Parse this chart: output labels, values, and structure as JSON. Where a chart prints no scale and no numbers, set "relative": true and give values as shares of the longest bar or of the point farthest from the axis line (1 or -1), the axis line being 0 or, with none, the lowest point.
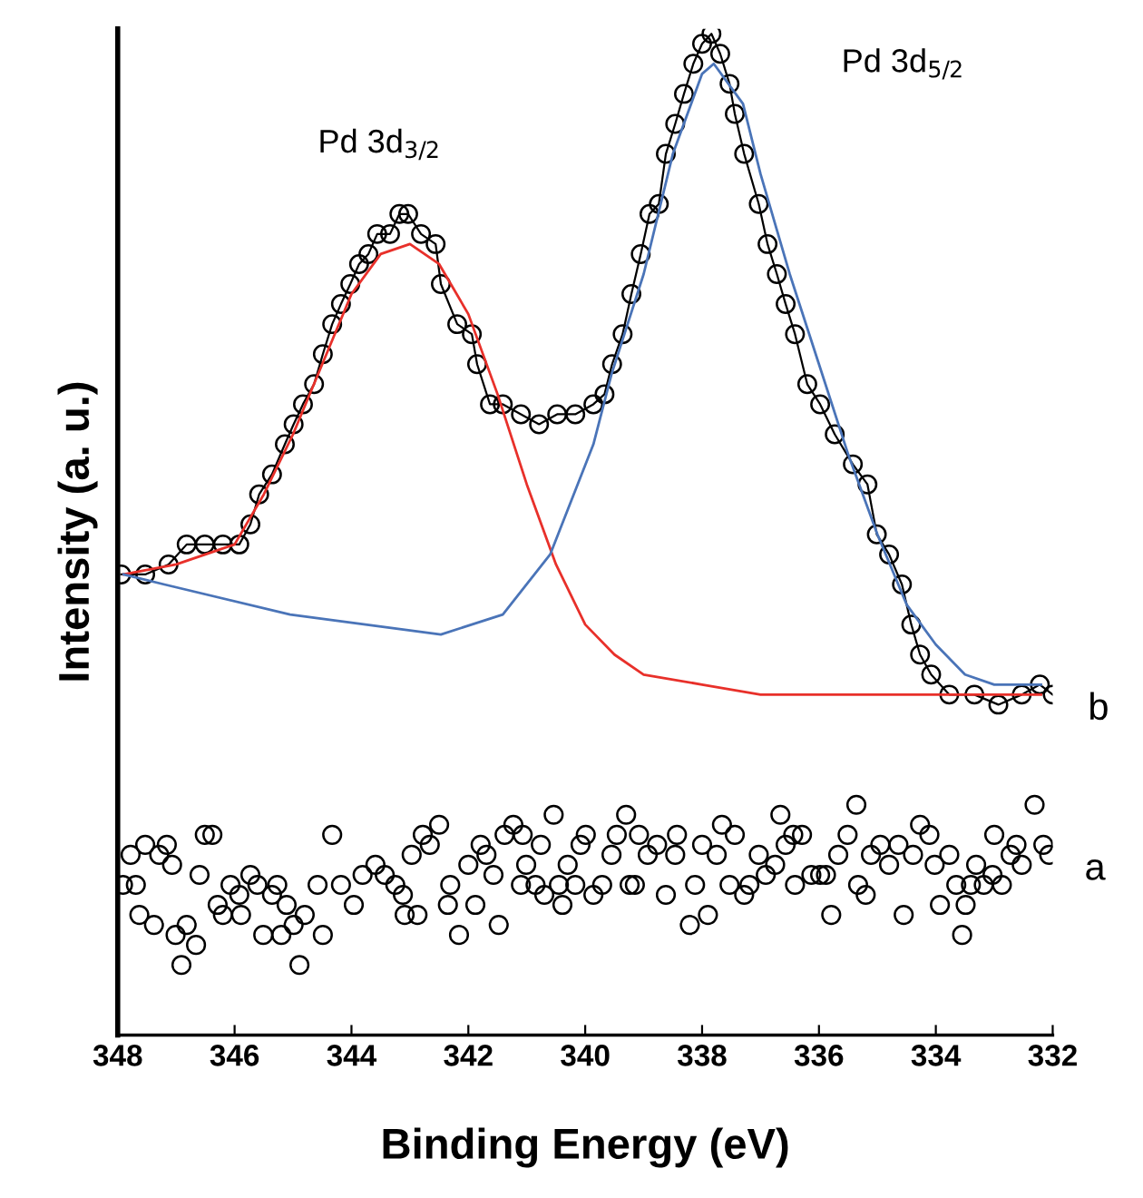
{
  "chart_data": {
    "type": "line",
    "xlabel": "Binding Energy (eV)",
    "ylabel": "Intensity (a. u.)",
    "relative": true,
    "tick_labels": "x",
    "grid": false,
    "legend": false,
    "xlim": [
      348,
      332
    ],
    "xticks": [
      348,
      346,
      344,
      342,
      340,
      338,
      336,
      334,
      332
    ],
    "annotations": [
      "Pd 3d$_{3/2}$",
      "Pd 3d$_{5/2}$"
    ],
    "series": [
      {
        "name": "b",
        "marker": "circle",
        "color": "#000000",
        "x": [
          347.94,
          347.53,
          347.13,
          346.82,
          346.51,
          346.2,
          345.92,
          345.73,
          345.58,
          345.36,
          345.14,
          344.99,
          344.83,
          344.64,
          344.49,
          344.33,
          344.18,
          344.02,
          343.87,
          343.71,
          343.56,
          343.34,
          343.18,
          343.03,
          342.81,
          342.56,
          342.47,
          342.19,
          341.94,
          341.85,
          341.63,
          341.41,
          341.1,
          340.79,
          340.48,
          340.17,
          339.86,
          339.67,
          339.54,
          339.36,
          339.21,
          339.05,
          338.9,
          338.74,
          338.62,
          338.46,
          338.31,
          338.15,
          338.0,
          337.84,
          337.69,
          337.53,
          337.44,
          337.28,
          337.03,
          336.88,
          336.72,
          336.57,
          336.41,
          336.2,
          335.98,
          335.73,
          335.42,
          335.17,
          335.01,
          334.8,
          334.58,
          334.42,
          334.27,
          334.08,
          333.77,
          333.34,
          332.93,
          332.53,
          332.22,
          332.0
        ],
        "values": [
          0.46,
          0.46,
          0.47,
          0.49,
          0.49,
          0.49,
          0.49,
          0.51,
          0.54,
          0.56,
          0.59,
          0.61,
          0.63,
          0.65,
          0.68,
          0.71,
          0.73,
          0.75,
          0.77,
          0.78,
          0.8,
          0.8,
          0.82,
          0.82,
          0.8,
          0.79,
          0.75,
          0.71,
          0.7,
          0.67,
          0.63,
          0.63,
          0.62,
          0.61,
          0.62,
          0.62,
          0.63,
          0.64,
          0.67,
          0.7,
          0.74,
          0.78,
          0.82,
          0.83,
          0.88,
          0.91,
          0.94,
          0.97,
          0.99,
          1.0,
          0.98,
          0.95,
          0.92,
          0.88,
          0.83,
          0.79,
          0.76,
          0.73,
          0.7,
          0.65,
          0.63,
          0.6,
          0.57,
          0.55,
          0.5,
          0.48,
          0.45,
          0.41,
          0.38,
          0.36,
          0.34,
          0.34,
          0.33,
          0.34,
          0.35,
          0.34
        ]
      },
      {
        "type": "line",
        "color": "#e8302a",
        "x": [
          347.9,
          347.0,
          346.5,
          346.0,
          345.5,
          345.0,
          344.5,
          344.0,
          343.5,
          343.0,
          342.5,
          342.0,
          341.5,
          341.0,
          340.5,
          340.0,
          339.5,
          339.0,
          338.0,
          337.0,
          336.0,
          334.0,
          332.2
        ],
        "values": [
          0.46,
          0.47,
          0.48,
          0.49,
          0.54,
          0.6,
          0.67,
          0.74,
          0.78,
          0.79,
          0.77,
          0.72,
          0.64,
          0.55,
          0.47,
          0.41,
          0.38,
          0.36,
          0.35,
          0.34,
          0.34,
          0.34,
          0.34
        ]
      },
      {
        "type": "line",
        "color": "#4a74b8",
        "x": [
          347.9,
          347.2,
          345.05,
          342.47,
          341.41,
          340.6,
          339.86,
          339.55,
          339.0,
          338.5,
          338.0,
          337.8,
          337.3,
          337.0,
          336.5,
          336.0,
          335.5,
          335.0,
          334.5,
          334.0,
          333.5,
          333.0,
          332.2
        ],
        "values": [
          0.46,
          0.45,
          0.42,
          0.4,
          0.42,
          0.48,
          0.59,
          0.66,
          0.76,
          0.88,
          0.96,
          0.97,
          0.93,
          0.86,
          0.76,
          0.67,
          0.58,
          0.5,
          0.43,
          0.39,
          0.36,
          0.35,
          0.35
        ]
      },
      {
        "name": "a",
        "type": "scatter",
        "marker": "circle",
        "color": "#000000",
        "x": [
          347.91,
          347.78,
          347.69,
          347.53,
          347.63,
          347.38,
          347.29,
          347.16,
          347.07,
          347.01,
          346.91,
          346.82,
          346.66,
          346.6,
          346.51,
          346.38,
          346.29,
          346.2,
          346.07,
          345.92,
          345.89,
          345.73,
          345.61,
          345.51,
          345.36,
          345.27,
          345.2,
          345.11,
          344.99,
          344.89,
          344.8,
          344.58,
          344.49,
          344.33,
          344.18,
          343.96,
          343.81,
          343.59,
          343.43,
          343.25,
          343.12,
          343.09,
          342.97,
          342.87,
          342.78,
          342.66,
          342.5,
          342.35,
          342.31,
          342.16,
          342.0,
          341.88,
          341.79,
          341.69,
          341.57,
          341.48,
          341.38,
          341.23,
          341.1,
          341.07,
          341.01,
          340.85,
          340.76,
          340.7,
          340.54,
          340.45,
          340.39,
          340.3,
          340.17,
          340.08,
          339.99,
          339.86,
          339.71,
          339.55,
          339.46,
          339.3,
          339.24,
          339.15,
          339.08,
          338.93,
          338.77,
          338.62,
          338.46,
          338.43,
          338.21,
          338.12,
          338.0,
          337.9,
          337.75,
          337.66,
          337.53,
          337.44,
          337.28,
          337.19,
          337.03,
          336.91,
          336.75,
          336.66,
          336.57,
          336.44,
          336.41,
          336.29,
          336.13,
          335.98,
          335.88,
          335.79,
          335.67,
          335.51,
          335.36,
          335.33,
          335.2,
          335.11,
          334.95,
          334.8,
          334.64,
          334.55,
          334.39,
          334.27,
          334.11,
          334.02,
          333.93,
          333.77,
          333.65,
          333.55,
          333.49,
          333.4,
          333.31,
          333.18,
          333.03,
          333.0,
          332.87,
          332.72,
          332.62,
          332.53,
          332.31,
          332.16,
          332.06
        ],
        "values": [
          0.15,
          0.18,
          0.15,
          0.19,
          0.12,
          0.11,
          0.18,
          0.19,
          0.17,
          0.1,
          0.07,
          0.11,
          0.09,
          0.16,
          0.2,
          0.2,
          0.13,
          0.12,
          0.15,
          0.14,
          0.12,
          0.16,
          0.15,
          0.1,
          0.14,
          0.15,
          0.1,
          0.13,
          0.11,
          0.07,
          0.12,
          0.15,
          0.1,
          0.2,
          0.15,
          0.13,
          0.16,
          0.17,
          0.16,
          0.15,
          0.14,
          0.12,
          0.18,
          0.12,
          0.2,
          0.19,
          0.21,
          0.13,
          0.15,
          0.1,
          0.17,
          0.13,
          0.19,
          0.18,
          0.16,
          0.11,
          0.2,
          0.21,
          0.15,
          0.2,
          0.17,
          0.15,
          0.19,
          0.14,
          0.22,
          0.15,
          0.13,
          0.17,
          0.15,
          0.19,
          0.2,
          0.14,
          0.15,
          0.18,
          0.2,
          0.22,
          0.15,
          0.15,
          0.2,
          0.18,
          0.19,
          0.14,
          0.18,
          0.2,
          0.11,
          0.15,
          0.19,
          0.12,
          0.18,
          0.21,
          0.15,
          0.2,
          0.14,
          0.15,
          0.18,
          0.16,
          0.17,
          0.22,
          0.19,
          0.2,
          0.15,
          0.2,
          0.16,
          0.16,
          0.16,
          0.12,
          0.18,
          0.2,
          0.23,
          0.15,
          0.14,
          0.18,
          0.19,
          0.17,
          0.19,
          0.12,
          0.18,
          0.21,
          0.2,
          0.17,
          0.13,
          0.18,
          0.15,
          0.1,
          0.13,
          0.15,
          0.17,
          0.15,
          0.16,
          0.2,
          0.15,
          0.18,
          0.19,
          0.17,
          0.23,
          0.19,
          0.18
        ]
      }
    ]
  }
}
